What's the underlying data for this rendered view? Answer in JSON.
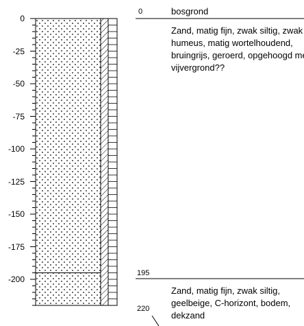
{
  "axis": {
    "ticks": [
      "0",
      "-25",
      "-50",
      "-75",
      "-100",
      "-125",
      "-150",
      "-175",
      "-200"
    ]
  },
  "layers": [
    {
      "top_depth": "0",
      "name": "bosgrond",
      "description": "Zand, matig fijn, zwak siltig, zwak humeus, matig wortelhoudend, bruingrijs, geroerd, opgehoogd met vijvergrond??"
    },
    {
      "top_depth": "195",
      "name": "",
      "description": "Zand, matig fijn, zwak siltig, geelbeige, C-horizont, bodem, dekzand"
    }
  ],
  "bottom_depth": "220",
  "chart_data": {
    "type": "boring-log",
    "depth_axis": {
      "range": [
        0,
        -220
      ],
      "ticks": [
        0,
        -25,
        -50,
        -75,
        -100,
        -125,
        -150,
        -175,
        -200
      ]
    },
    "layers": [
      {
        "from": 0,
        "to": 195,
        "lithology": "sand (dotted)"
      },
      {
        "from": 195,
        "to": 220,
        "lithology": "sand (dotted)"
      }
    ]
  }
}
